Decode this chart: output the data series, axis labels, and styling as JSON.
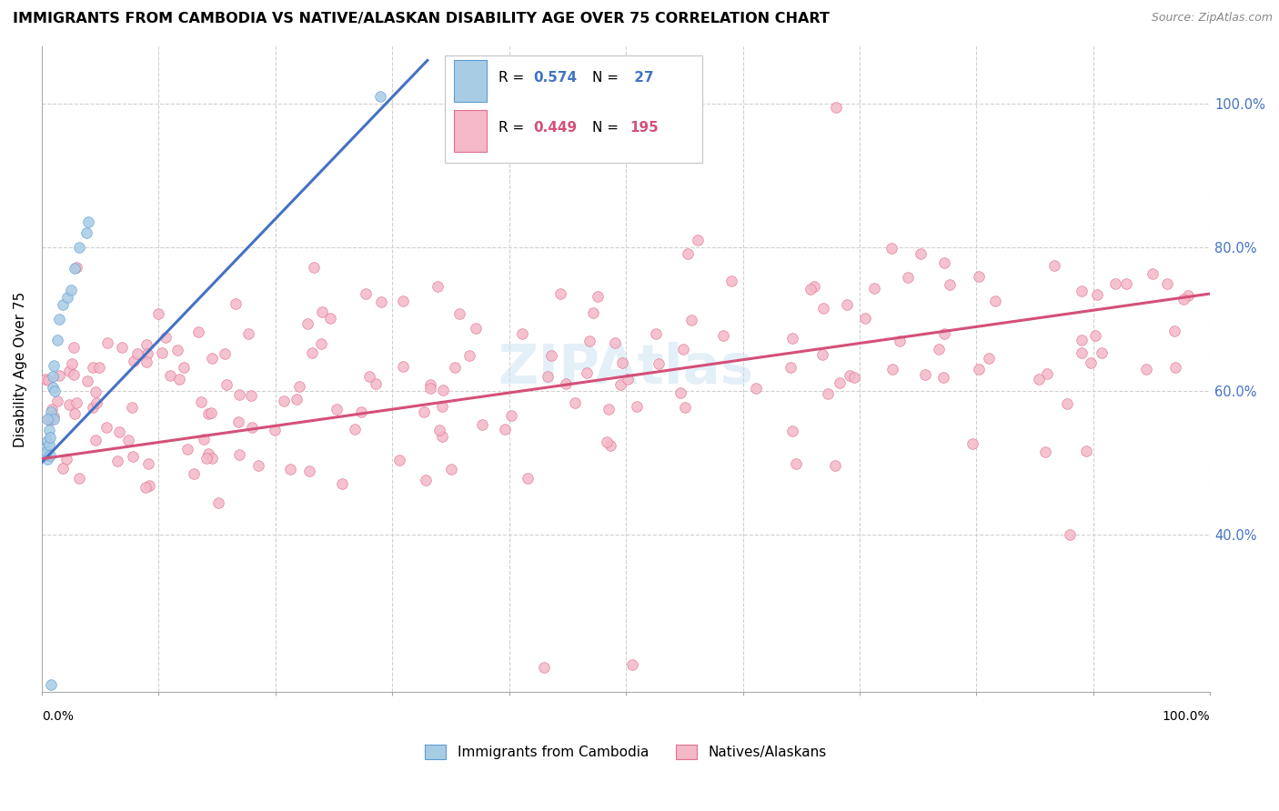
{
  "title": "IMMIGRANTS FROM CAMBODIA VS NATIVE/ALASKAN DISABILITY AGE OVER 75 CORRELATION CHART",
  "source": "Source: ZipAtlas.com",
  "ylabel": "Disability Age Over 75",
  "ylabel_right_ticks": [
    "40.0%",
    "60.0%",
    "80.0%",
    "100.0%"
  ],
  "ylabel_right_positions": [
    0.4,
    0.6,
    0.8,
    1.0
  ],
  "legend_label_blue": "Immigrants from Cambodia",
  "legend_label_pink": "Natives/Alaskans",
  "blue_color": "#a8cce4",
  "blue_edge_color": "#5b9bd5",
  "blue_line_color": "#4472c4",
  "pink_color": "#f4b8c8",
  "pink_edge_color": "#e07090",
  "pink_line_color": "#d45078",
  "watermark": "ZIPAtlas",
  "xlim": [
    0.0,
    1.0
  ],
  "ylim": [
    0.18,
    1.08
  ],
  "blue_trend_x": [
    0.0,
    0.33
  ],
  "blue_trend_y": [
    0.5,
    1.06
  ],
  "pink_trend_x": [
    0.0,
    1.0
  ],
  "pink_trend_y": [
    0.505,
    0.735
  ]
}
